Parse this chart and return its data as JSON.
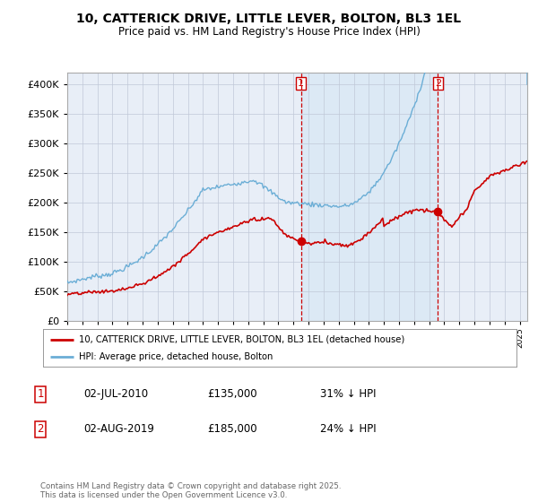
{
  "title": "10, CATTERICK DRIVE, LITTLE LEVER, BOLTON, BL3 1EL",
  "subtitle": "Price paid vs. HM Land Registry's House Price Index (HPI)",
  "legend_line1": "10, CATTERICK DRIVE, LITTLE LEVER, BOLTON, BL3 1EL (detached house)",
  "legend_line2": "HPI: Average price, detached house, Bolton",
  "marker1_date": "02-JUL-2010",
  "marker1_price": 135000,
  "marker1_label": "31% ↓ HPI",
  "marker2_date": "02-AUG-2019",
  "marker2_price": 185000,
  "marker2_label": "24% ↓ HPI",
  "sale1_x": 2010.5,
  "sale1_y": 135000,
  "sale2_x": 2019.583,
  "sale2_y": 185000,
  "hpi_color": "#6baed6",
  "price_color": "#cc0000",
  "vline_color": "#cc0000",
  "shade_color": "#dce9f5",
  "background_color": "#e8eef7",
  "grid_color": "#c0c8d8",
  "ylim": [
    0,
    420000
  ],
  "yticks": [
    0,
    50000,
    100000,
    150000,
    200000,
    250000,
    300000,
    350000,
    400000
  ],
  "xlim_start": 1995,
  "xlim_end": 2025.5,
  "footer": "Contains HM Land Registry data © Crown copyright and database right 2025.\nThis data is licensed under the Open Government Licence v3.0."
}
